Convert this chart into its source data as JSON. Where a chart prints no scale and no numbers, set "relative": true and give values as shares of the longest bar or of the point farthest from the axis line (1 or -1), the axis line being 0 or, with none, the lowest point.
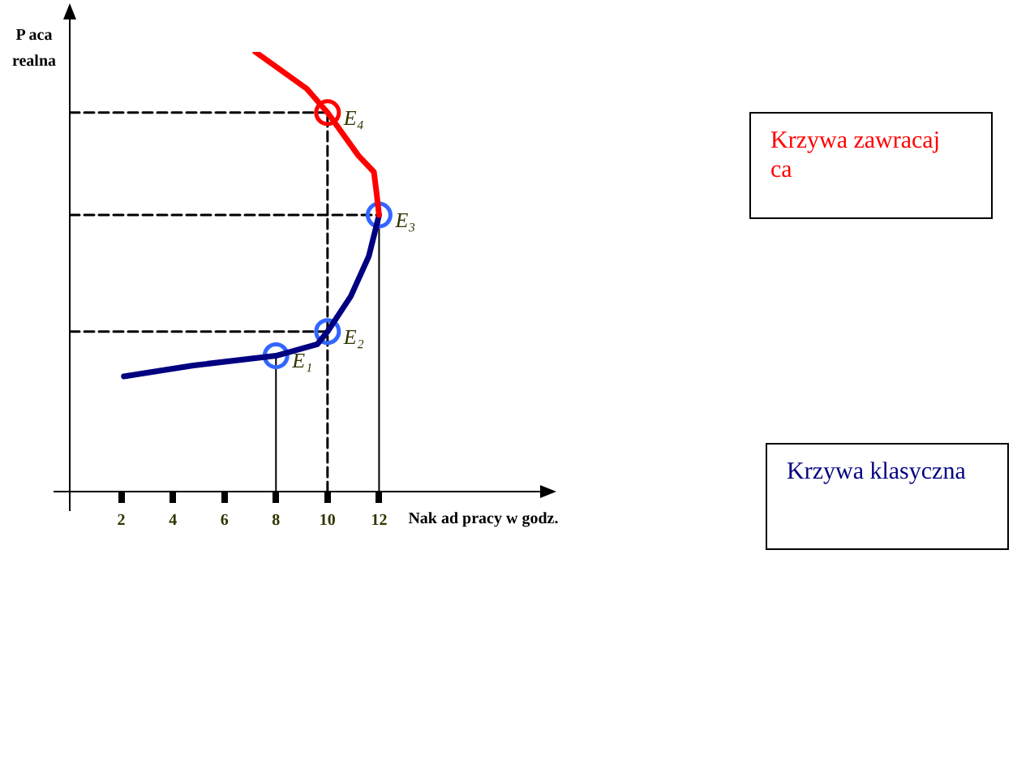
{
  "chart_data": {
    "type": "line",
    "relative": true,
    "xlabel": "Nak ad pracy w godz.",
    "ylabel": "P aca realna",
    "xlim": [
      0,
      18.5
    ],
    "xticks": [
      2,
      4,
      6,
      8,
      10,
      12
    ],
    "tick_labels": "x",
    "grid": false,
    "legend": "right",
    "series": [
      {
        "name": "Krzywa zawracaj ca",
        "color": "#ff0000",
        "x": [
          7.2,
          9.2,
          10,
          11.2,
          11.8,
          11.9,
          12
        ],
        "values": [
          1,
          0.916,
          0.862,
          0.764,
          0.727,
          0.68,
          0.629
        ],
        "marker": "none",
        "line_style": "solid"
      },
      {
        "name": "Krzywa klasyczna",
        "color": "#000080",
        "x": [
          2.1,
          4.8,
          8,
          9.6,
          10,
          10.9,
          11.6,
          12
        ],
        "values": [
          0.262,
          0.287,
          0.309,
          0.335,
          0.364,
          0.444,
          0.535,
          0.629
        ],
        "marker": "none",
        "line_style": "solid"
      },
      {
        "type": "scatter",
        "colors": [
          "#3366ff",
          "#3366ff",
          "#3366ff",
          "#ff0000"
        ],
        "x": [
          8,
          10,
          12,
          10
        ],
        "values": [
          0.309,
          0.364,
          0.629,
          0.862
        ],
        "marker": "circle"
      },
      {
        "color": "#000000",
        "x": [
          0,
          10
        ],
        "values": [
          0.862,
          0.862
        ],
        "marker": "none",
        "line_style": "dashed"
      },
      {
        "color": "#000000",
        "x": [
          0,
          12
        ],
        "values": [
          0.629,
          0.629
        ],
        "marker": "none",
        "line_style": "dashed"
      },
      {
        "color": "#000000",
        "x": [
          0,
          10
        ],
        "values": [
          0.364,
          0.364
        ],
        "marker": "none",
        "line_style": "dashed"
      },
      {
        "color": "#000000",
        "x": [
          10,
          10
        ],
        "values": [
          0,
          0.862
        ],
        "marker": "none",
        "line_style": "dashed"
      },
      {
        "color": "#000000",
        "x": [
          8,
          8
        ],
        "values": [
          0,
          0.309
        ],
        "marker": "none",
        "line_style": "solid"
      },
      {
        "color": "#000000",
        "x": [
          12,
          12
        ],
        "values": [
          0,
          0.629
        ],
        "marker": "none",
        "line_style": "solid"
      }
    ],
    "annotations": [
      {
        "text": "E₁",
        "x": 8,
        "y": 0.309
      },
      {
        "text": "E₂",
        "x": 10,
        "y": 0.364
      },
      {
        "text": "E₃",
        "x": 12,
        "y": 0.629
      },
      {
        "text": "E₄",
        "x": 10,
        "y": 0.862
      }
    ]
  }
}
